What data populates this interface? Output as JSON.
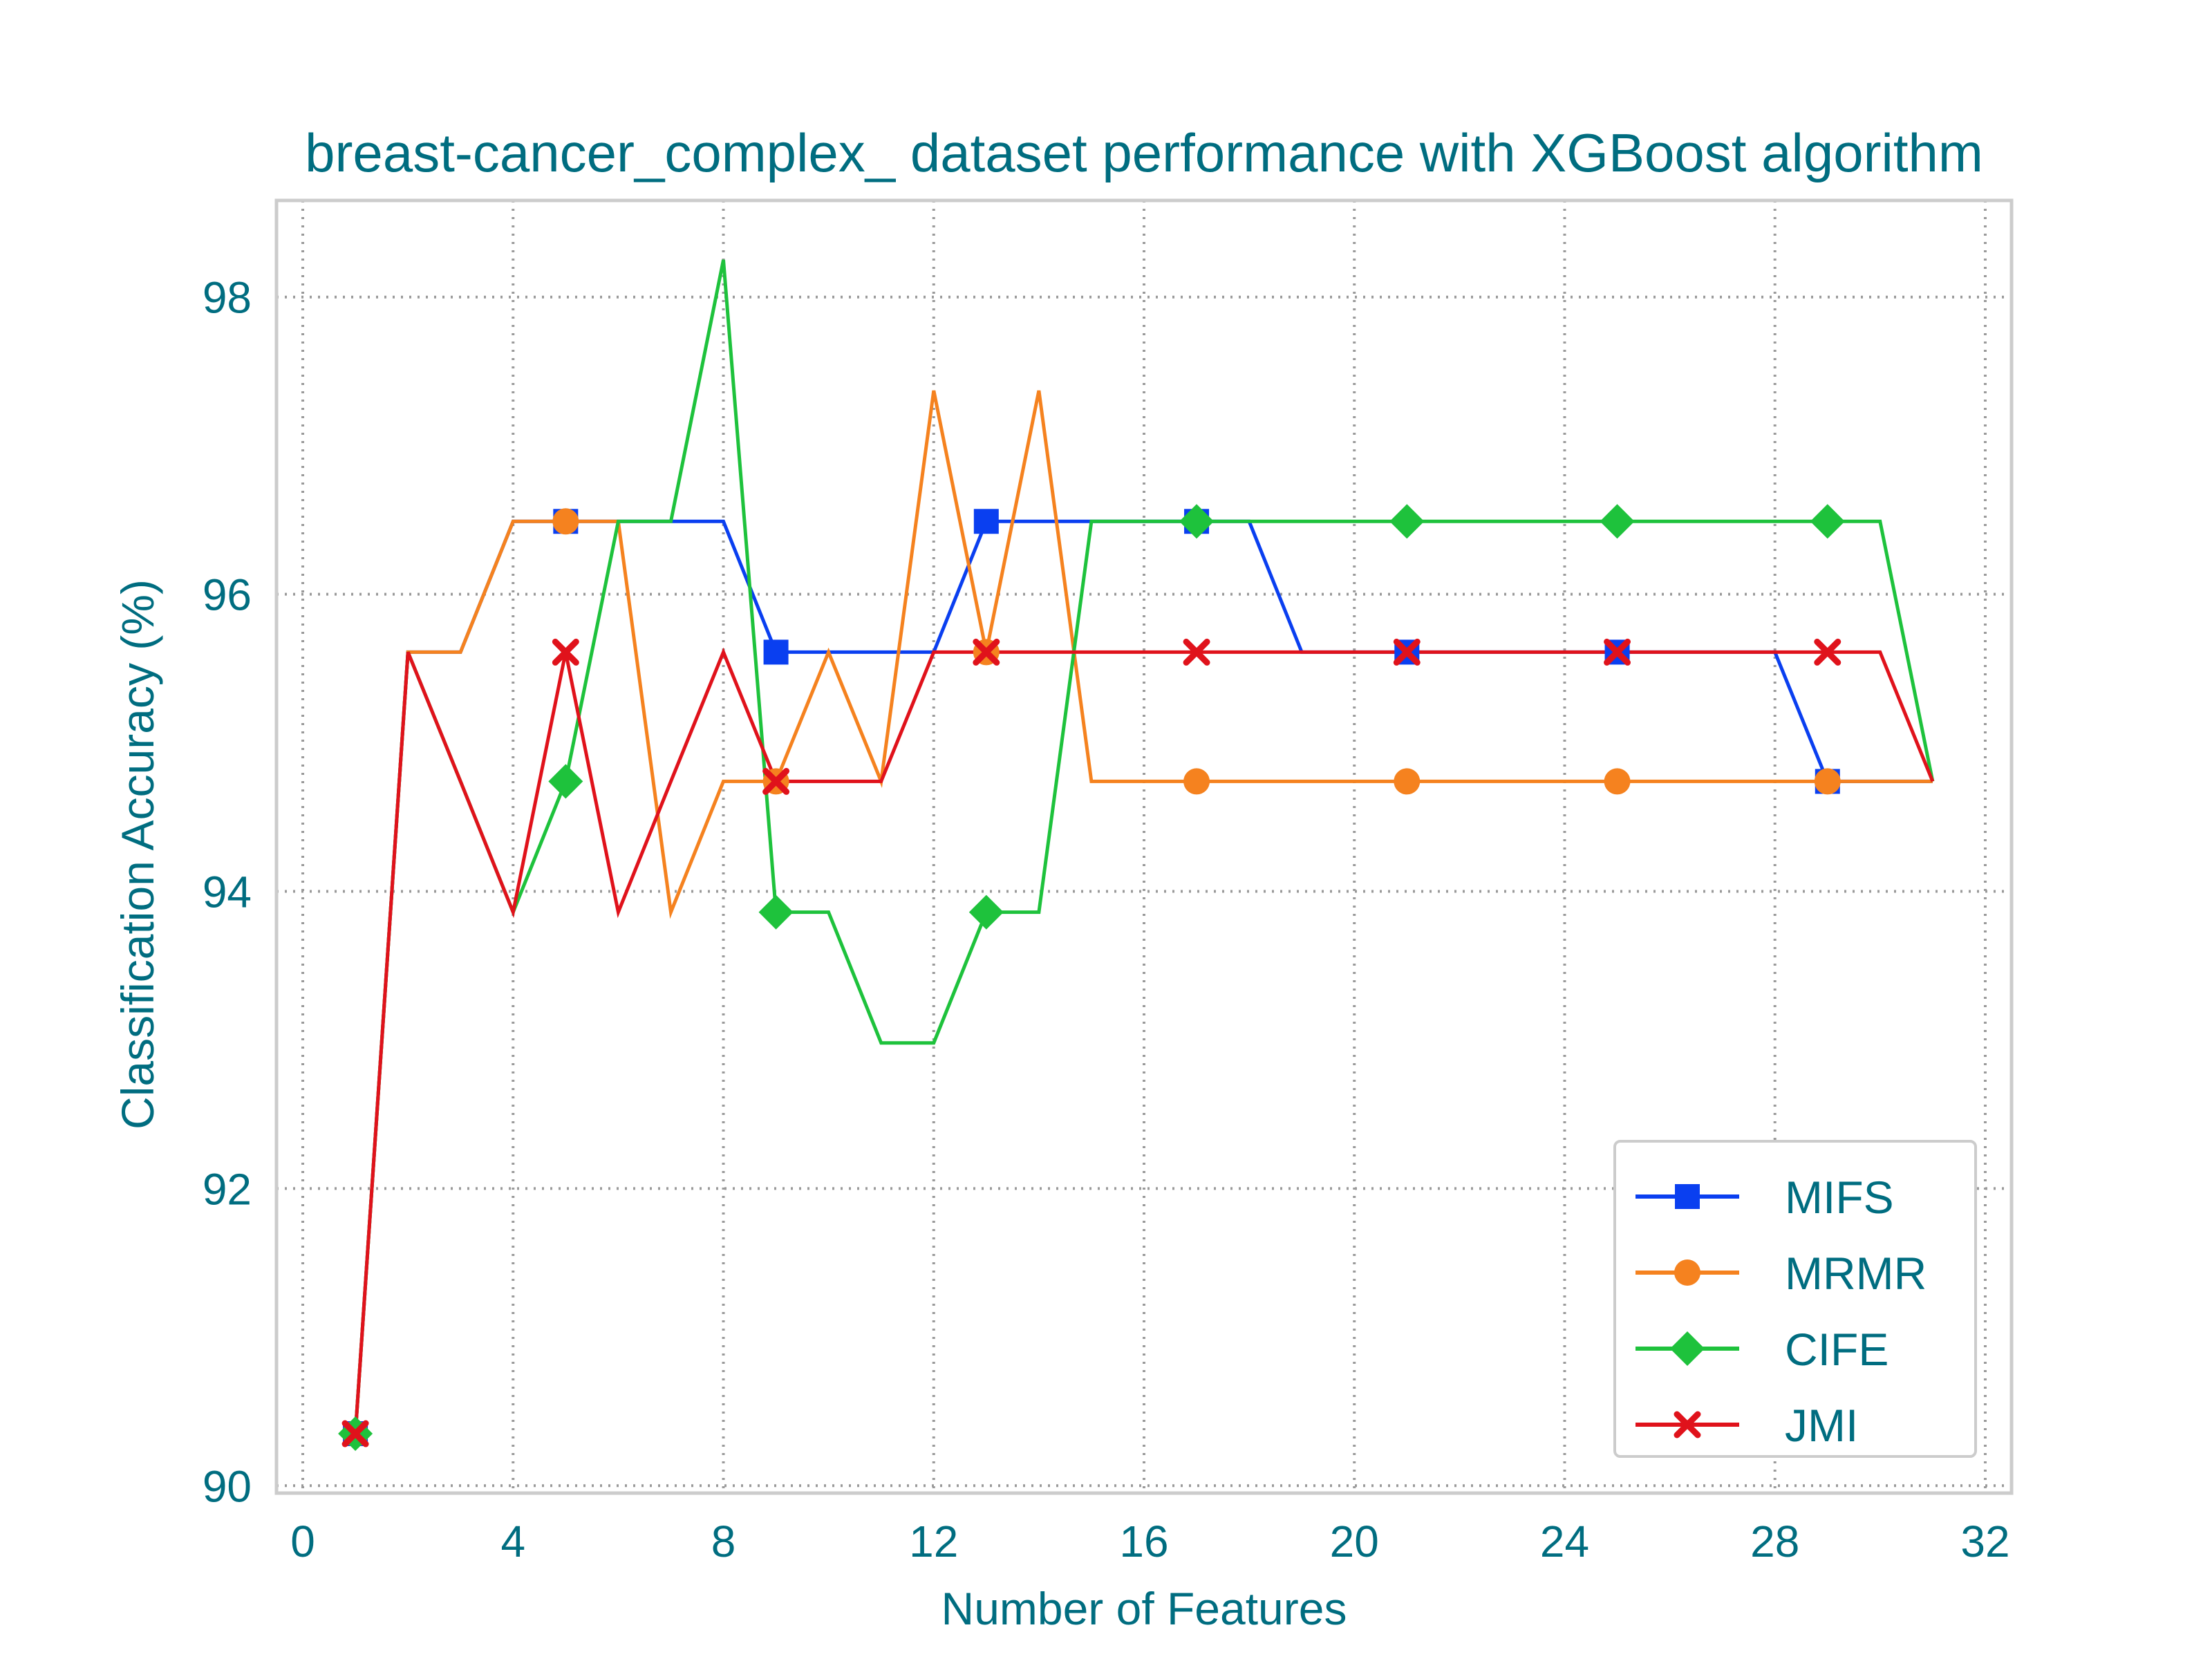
{
  "chart_data": {
    "type": "line",
    "title": "breast-cancer_complex_ dataset performance with XGBoost algorithm",
    "xlabel": "Number of Features",
    "ylabel": "Classification Accuracy (%)",
    "xlim": [
      -0.5,
      32.5
    ],
    "ylim": [
      89.95,
      98.65
    ],
    "xticks": [
      0,
      4,
      8,
      12,
      16,
      20,
      24,
      28,
      32
    ],
    "yticks": [
      90,
      92,
      94,
      96,
      98
    ],
    "grid": true,
    "legend_position": "lower-right",
    "text_color": "#006d80",
    "x": [
      1,
      2,
      3,
      4,
      5,
      6,
      7,
      8,
      9,
      10,
      11,
      12,
      13,
      14,
      15,
      16,
      17,
      18,
      19,
      20,
      21,
      22,
      23,
      24,
      25,
      26,
      27,
      28,
      29,
      30,
      31
    ],
    "series": [
      {
        "name": "MIFS",
        "color": "#0a3ff0",
        "marker": "square",
        "values": [
          90.35,
          95.61,
          95.61,
          96.49,
          96.49,
          96.49,
          96.49,
          96.49,
          95.61,
          95.61,
          95.61,
          95.61,
          96.49,
          96.49,
          96.49,
          96.49,
          96.49,
          96.49,
          95.61,
          95.61,
          95.61,
          95.61,
          95.61,
          95.61,
          95.61,
          95.61,
          95.61,
          95.61,
          94.74,
          94.74,
          94.74
        ]
      },
      {
        "name": "MRMR",
        "color": "#f5821f",
        "marker": "circle",
        "values": [
          90.35,
          95.61,
          95.61,
          96.49,
          96.49,
          96.49,
          93.86,
          94.74,
          94.74,
          95.61,
          94.74,
          97.37,
          95.61,
          97.37,
          94.74,
          94.74,
          94.74,
          94.74,
          94.74,
          94.74,
          94.74,
          94.74,
          94.74,
          94.74,
          94.74,
          94.74,
          94.74,
          94.74,
          94.74,
          94.74,
          94.74
        ]
      },
      {
        "name": "CIFE",
        "color": "#1ec23c",
        "marker": "diamond",
        "values": [
          90.35,
          95.61,
          94.74,
          93.86,
          94.74,
          96.49,
          96.49,
          98.25,
          93.86,
          93.86,
          92.98,
          92.98,
          93.86,
          93.86,
          96.49,
          96.49,
          96.49,
          96.49,
          96.49,
          96.49,
          96.49,
          96.49,
          96.49,
          96.49,
          96.49,
          96.49,
          96.49,
          96.49,
          96.49,
          96.49,
          94.74
        ]
      },
      {
        "name": "JMI",
        "color": "#e0121b",
        "marker": "x",
        "values": [
          90.35,
          95.61,
          94.74,
          93.86,
          95.61,
          93.86,
          94.74,
          95.61,
          94.74,
          94.74,
          94.74,
          95.61,
          95.61,
          95.61,
          95.61,
          95.61,
          95.61,
          95.61,
          95.61,
          95.61,
          95.61,
          95.61,
          95.61,
          95.61,
          95.61,
          95.61,
          95.61,
          95.61,
          95.61,
          95.61,
          94.74
        ]
      }
    ]
  }
}
